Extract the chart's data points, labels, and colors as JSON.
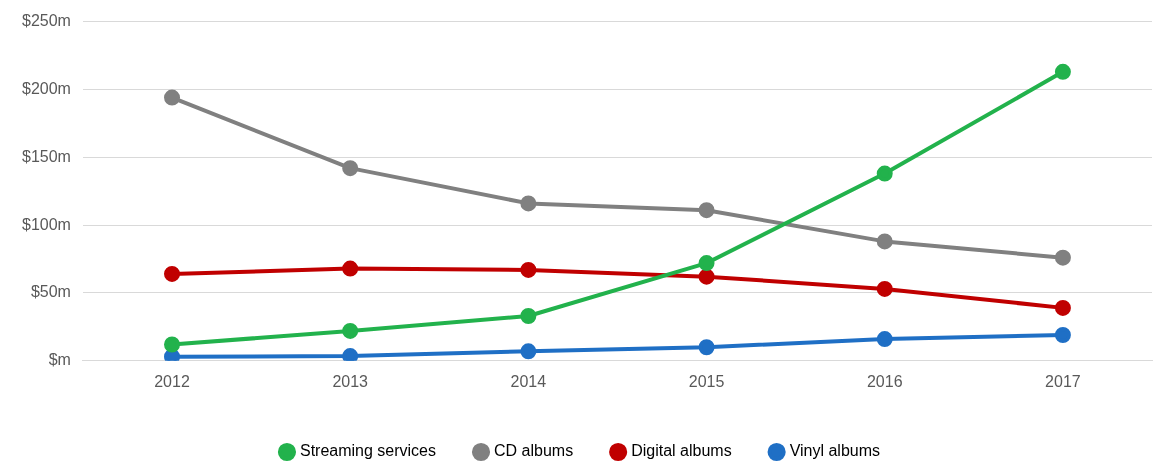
{
  "chart_data": {
    "type": "line",
    "categories": [
      "2012",
      "2013",
      "2014",
      "2015",
      "2016",
      "2017"
    ],
    "series": [
      {
        "name": "Streaming services",
        "color": "#22b24c",
        "values": [
          12,
          22,
          33,
          72,
          138,
          213
        ]
      },
      {
        "name": "CD albums",
        "color": "#808080",
        "values": [
          194,
          142,
          116,
          111,
          88,
          76
        ]
      },
      {
        "name": "Digital albums",
        "color": "#c00000",
        "values": [
          64,
          68,
          67,
          62,
          53,
          39
        ]
      },
      {
        "name": "Vinyl albums",
        "color": "#1f6fc5",
        "values": [
          3,
          3.5,
          7,
          10,
          16,
          19
        ]
      }
    ],
    "ylim": [
      0,
      250
    ],
    "yticks": [
      {
        "value": 0,
        "label": "$m"
      },
      {
        "value": 50,
        "label": "$50m"
      },
      {
        "value": 100,
        "label": "$100m"
      },
      {
        "value": 150,
        "label": "$150m"
      },
      {
        "value": 200,
        "label": "$200m"
      },
      {
        "value": 250,
        "label": "$250m"
      }
    ],
    "grid": "y",
    "legend": "bottom",
    "marker": "circle",
    "line_style": "solid"
  }
}
